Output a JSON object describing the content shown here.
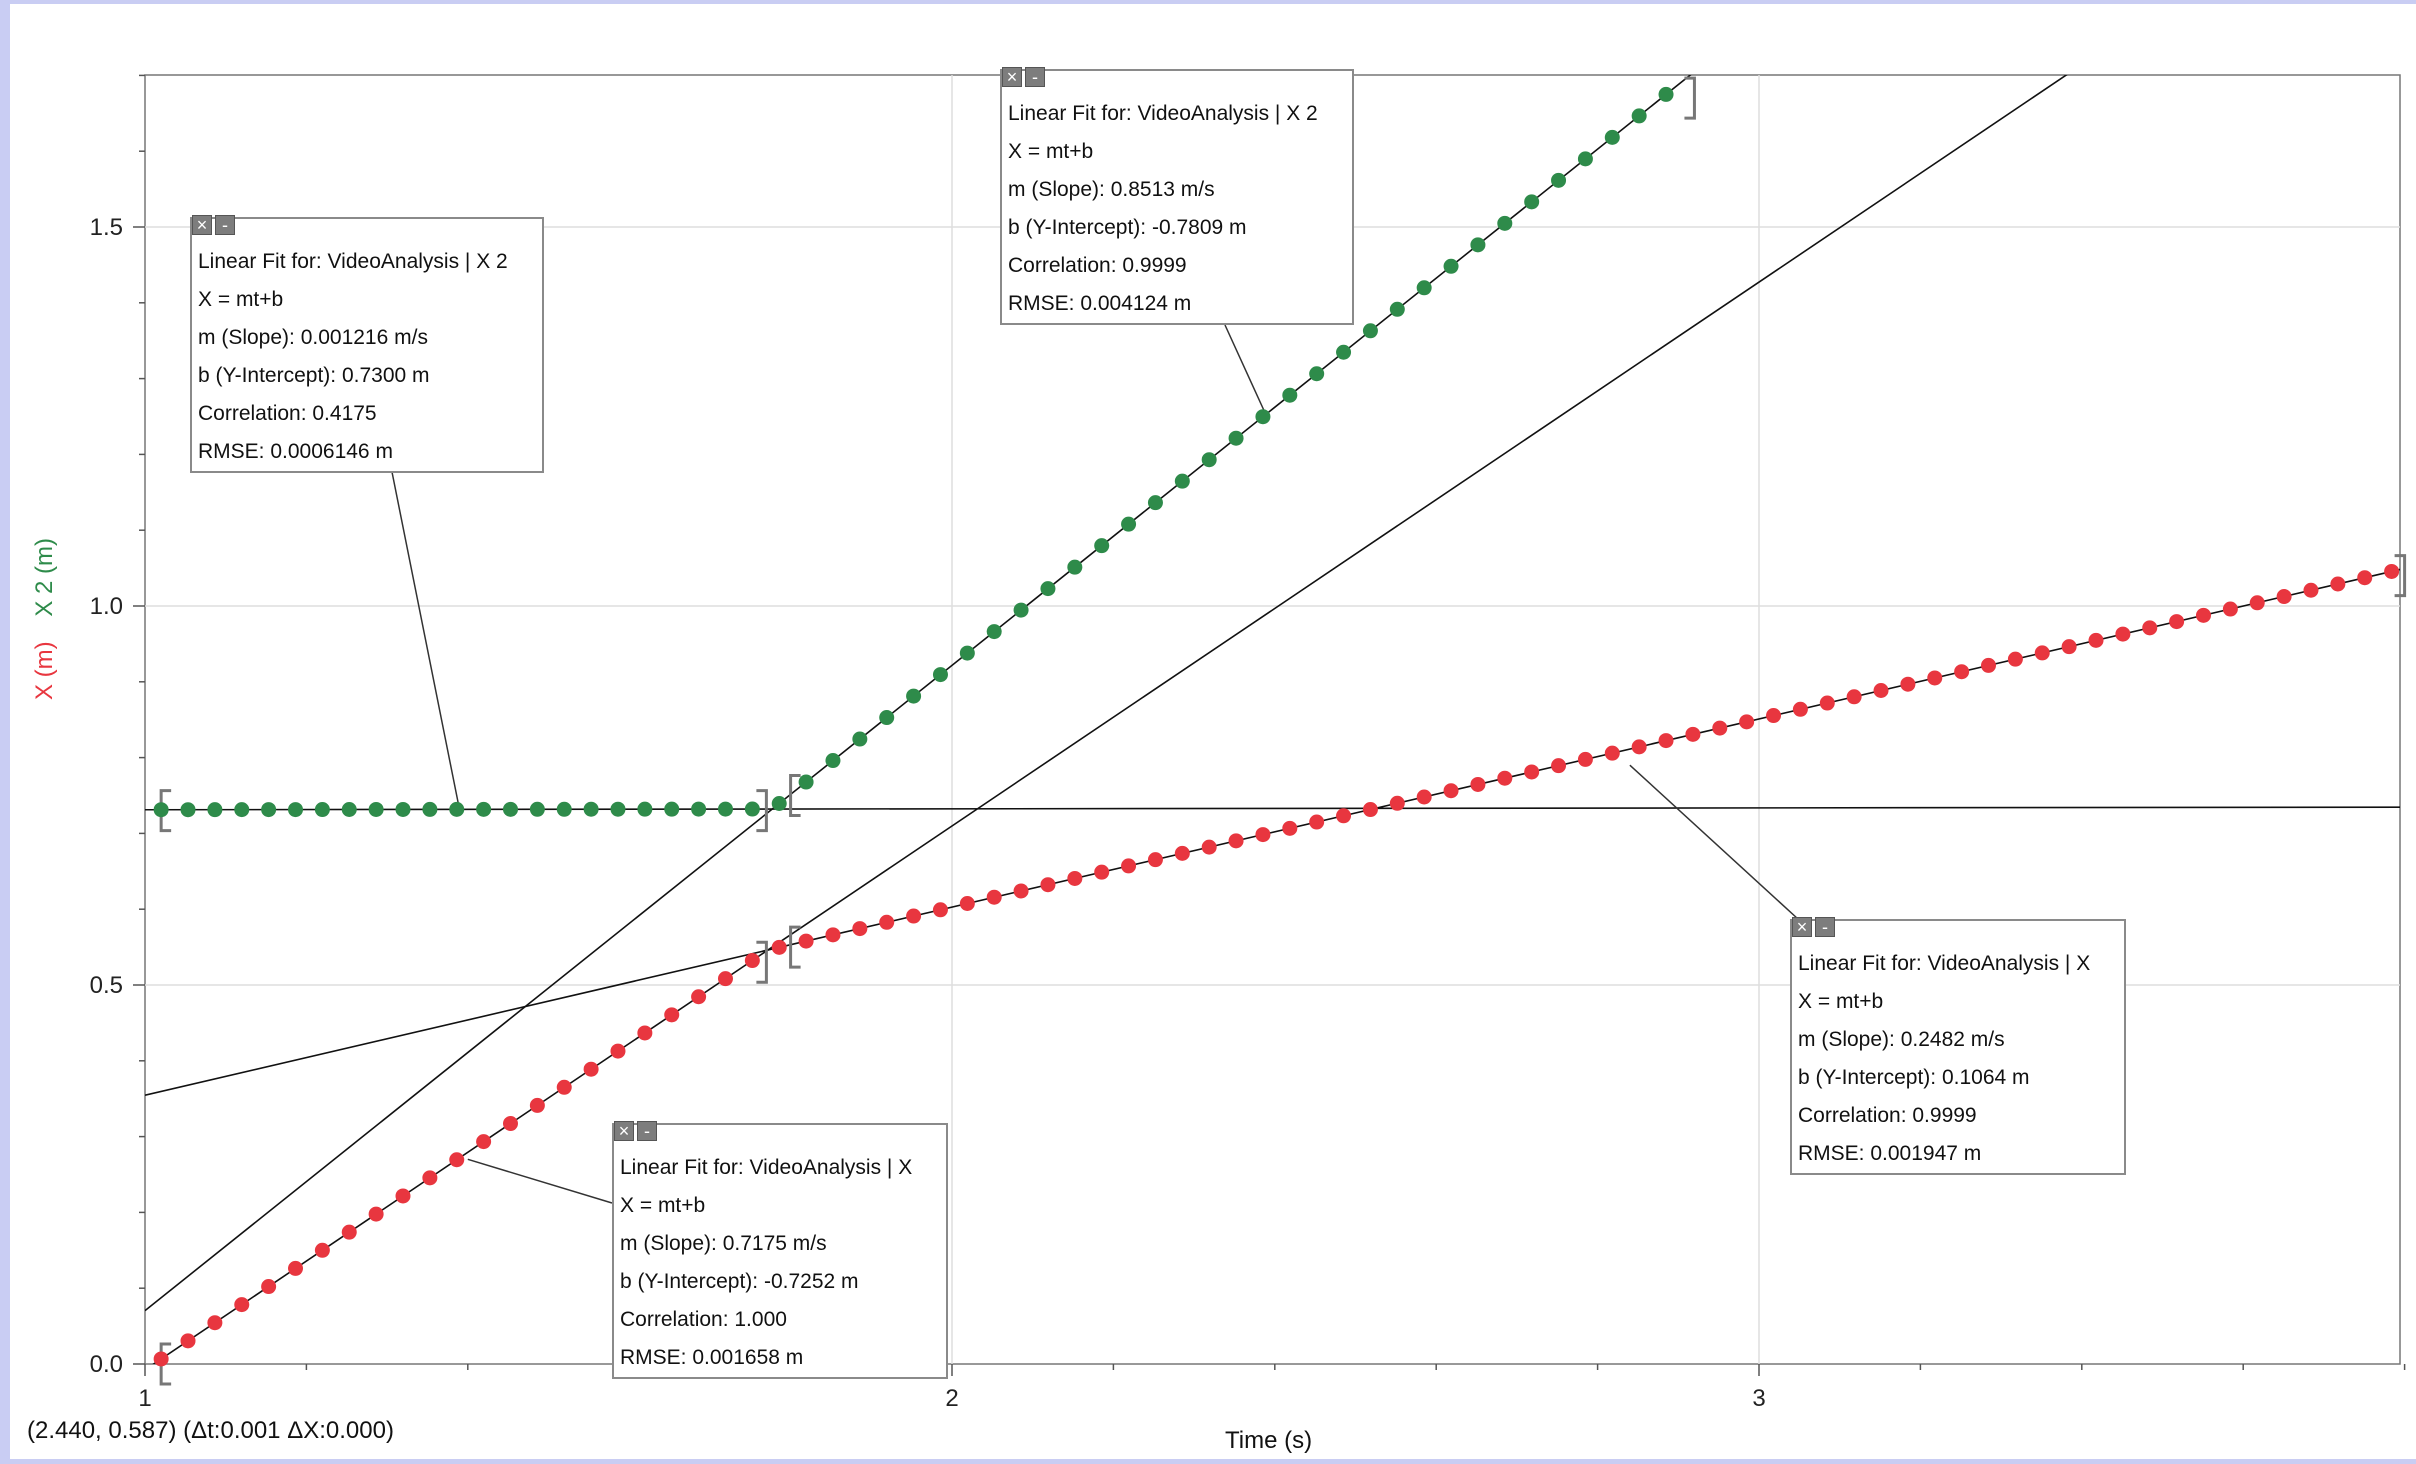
{
  "chart_data": {
    "type": "scatter",
    "xlabel": "Time (s)",
    "ylabels": [
      {
        "text": "X (m)",
        "color": "#e8363f"
      },
      {
        "text": "X 2 (m)",
        "color": "#2e8b4a"
      }
    ],
    "xlim": [
      1.0,
      3.8
    ],
    "ylim": [
      0.0,
      1.7
    ],
    "xticks": [
      "1",
      "2",
      "3"
    ],
    "yticks": [
      "0.0",
      "0.5",
      "1.0",
      "1.5"
    ],
    "grid": true,
    "series": [
      {
        "name": "X",
        "color": "#e8363f",
        "x_start": 1.02,
        "x_step": 0.0333,
        "count": 84,
        "segments": [
          {
            "x_end": 1.77,
            "slope": 0.7175,
            "intercept": -0.7252
          },
          {
            "x_end": 3.8,
            "slope": 0.2482,
            "intercept": 0.1064
          }
        ]
      },
      {
        "name": "X 2",
        "color": "#2e8b4a",
        "x_start": 1.02,
        "x_step": 0.0333,
        "count": 57,
        "segments": [
          {
            "x_end": 1.77,
            "slope": 0.001216,
            "intercept": 0.73
          },
          {
            "x_end": 2.92,
            "slope": 0.8513,
            "intercept": -0.7809
          }
        ]
      }
    ],
    "fits": [
      {
        "slope": 0.001216,
        "intercept": 0.73
      },
      {
        "slope": 0.8513,
        "intercept": -0.7809
      },
      {
        "slope": 0.7175,
        "intercept": -0.7252
      },
      {
        "slope": 0.2482,
        "intercept": 0.1064
      }
    ]
  },
  "fit_boxes": [
    {
      "title": "Linear Fit for: VideoAnalysis | X 2",
      "equation": "X = mt+b",
      "slope": "m (Slope): 0.001216 m/s",
      "intercept": "b (Y-Intercept): 0.7300 m",
      "correlation": "Correlation: 0.4175",
      "rmse": "RMSE: 0.0006146 m"
    },
    {
      "title": "Linear Fit for: VideoAnalysis | X 2",
      "equation": "X = mt+b",
      "slope": "m (Slope): 0.8513 m/s",
      "intercept": "b (Y-Intercept): -0.7809 m",
      "correlation": "Correlation: 0.9999",
      "rmse": "RMSE: 0.004124 m"
    },
    {
      "title": "Linear Fit for: VideoAnalysis | X",
      "equation": "X = mt+b",
      "slope": "m (Slope): 0.7175 m/s",
      "intercept": "b (Y-Intercept): -0.7252 m",
      "correlation": "Correlation: 1.000",
      "rmse": "RMSE: 0.001658 m"
    },
    {
      "title": "Linear Fit for: VideoAnalysis | X",
      "equation": "X = mt+b",
      "slope": "m (Slope): 0.2482 m/s",
      "intercept": "b (Y-Intercept): 0.1064 m",
      "correlation": "Correlation: 0.9999",
      "rmse": "RMSE: 0.001947 m"
    }
  ],
  "cursor_readout": "(2.440, 0.587) (Δt:0.001 ΔX:0.000)",
  "box_close_icon": "close-icon",
  "box_minimize_icon": "minimize-icon"
}
